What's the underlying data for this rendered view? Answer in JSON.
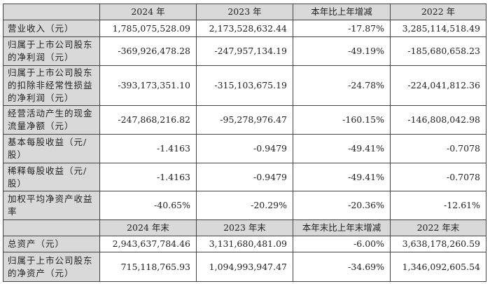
{
  "header1": [
    "",
    "2024 年",
    "2023 年",
    "本年比上年增减",
    "2022 年"
  ],
  "rows1": [
    {
      "label": "营业收入（元）",
      "values": [
        "1,785,075,528.09",
        "2,173,528,632.44",
        "-17.87%",
        "3,285,114,518.49"
      ]
    },
    {
      "label": "归属于上市公司股东\n的净利润（元）",
      "values": [
        "-369,926,478.28",
        "-247,957,134.19",
        "-49.19%",
        "-185,680,658.23"
      ]
    },
    {
      "label": "归属于上市公司股东\n的扣除非经常性损益\n的净利润（元）",
      "values": [
        "-393,173,351.10",
        "-315,103,675.19",
        "-24.78%",
        "-224,041,812.36"
      ]
    },
    {
      "label": "经营活动产生的现金\n流量净额（元）",
      "values": [
        "-247,868,216.82",
        "-95,278,976.47",
        "-160.15%",
        "-146,808,042.98"
      ]
    },
    {
      "label": "基本每股收益（元/\n股）",
      "values": [
        "-1.4163",
        "-0.9479",
        "-49.41%",
        "-0.7078"
      ]
    },
    {
      "label": "稀释每股收益（元/\n股）",
      "values": [
        "-1.4163",
        "-0.9479",
        "-49.41%",
        "-0.7078"
      ]
    },
    {
      "label": "加权平均净资产收益\n率",
      "values": [
        "-40.65%",
        "-20.29%",
        "-20.36%",
        "-12.61%"
      ]
    }
  ],
  "header2": [
    "",
    "2024 年末",
    "2023 年末",
    "本年末比上年末增减",
    "2022 年末"
  ],
  "rows2": [
    {
      "label": "总资产（元）",
      "values": [
        "2,943,637,784.46",
        "3,131,680,481.09",
        "-6.00%",
        "3,638,178,260.59"
      ]
    },
    {
      "label": "归属于上市公司股东\n的净资产（元）",
      "values": [
        "715,118,765.93",
        "1,094,993,947.47",
        "-34.69%",
        "1,346,092,605.54"
      ]
    }
  ]
}
